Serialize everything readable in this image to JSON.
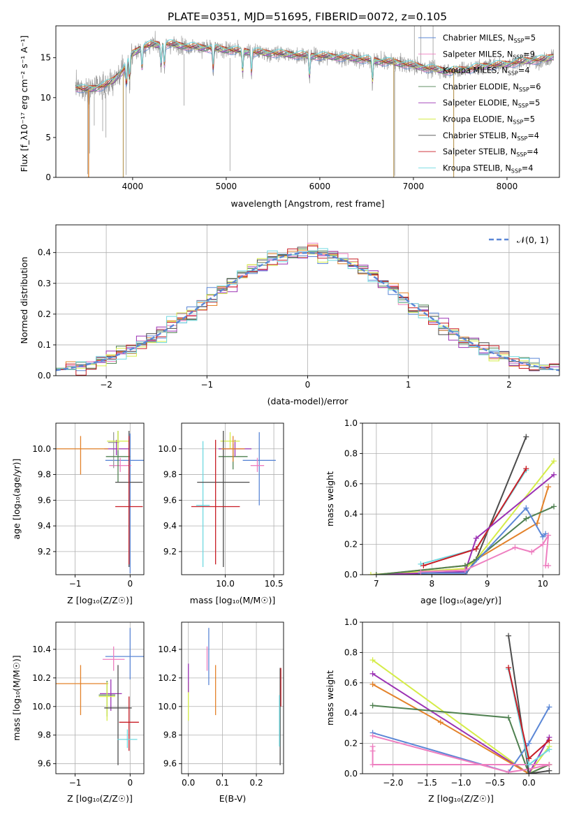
{
  "figure": {
    "title": "PLATE=0351, MJD=51695, FIBERID=0072, z=0.105"
  },
  "palette": {
    "Chabrier MILES": "#5b87d6",
    "Salpeter MILES": "#ee7fc0",
    "Kroupa MILES": "#9a9a9a",
    "Chabrier ELODIE": "#4f8050",
    "Salpeter ELODIE": "#9b32b4",
    "Kroupa ELODIE": "#d5ec48",
    "Chabrier STELIB": "#4c4c4c",
    "Salpeter STELIB": "#c81d25",
    "Kroupa STELIB": "#6fd8e0",
    "orange": "#e3822a",
    "normal": "#5b87d6"
  },
  "chart_data": [
    {
      "id": "spectrum",
      "type": "line",
      "xlabel": "wavelength [Angstrom, rest frame]",
      "ylabel": "Flux [f_λ10⁻¹⁷ erg cm⁻² s⁻¹ A⁻¹]",
      "xlim": [
        3180,
        8560
      ],
      "ylim": [
        0,
        19
      ],
      "xticks": [
        4000,
        5000,
        6000,
        7000,
        8000
      ],
      "yticks": [
        0,
        5,
        10,
        15
      ],
      "grid": false,
      "legend_position": "right",
      "legend": [
        {
          "label": "Chabrier MILES, N",
          "sub": "SSP",
          "tail": "=5",
          "color_key": "Chabrier MILES"
        },
        {
          "label": "Salpeter MILES, N",
          "sub": "SSP",
          "tail": "=9",
          "color_key": "Salpeter MILES"
        },
        {
          "label": "Kroupa MILES, N",
          "sub": "SSP",
          "tail": "=4",
          "color_key": "Kroupa MILES"
        },
        {
          "label": "Chabrier ELODIE, N",
          "sub": "SSP",
          "tail": "=6",
          "color_key": "Chabrier ELODIE"
        },
        {
          "label": "Salpeter ELODIE, N",
          "sub": "SSP",
          "tail": "=5",
          "color_key": "Salpeter ELODIE"
        },
        {
          "label": "Kroupa ELODIE, N",
          "sub": "SSP",
          "tail": "=5",
          "color_key": "Kroupa ELODIE"
        },
        {
          "label": "Chabrier STELIB, N",
          "sub": "SSP",
          "tail": "=4",
          "color_key": "Chabrier STELIB"
        },
        {
          "label": "Salpeter STELIB, N",
          "sub": "SSP",
          "tail": "=4",
          "color_key": "Salpeter STELIB"
        },
        {
          "label": "Kroupa STELIB, N",
          "sub": "SSP",
          "tail": "=4",
          "color_key": "Kroupa STELIB"
        }
      ],
      "continuum": [
        [
          3390,
          11.3
        ],
        [
          3500,
          11.0
        ],
        [
          3600,
          11.2
        ],
        [
          3700,
          11.5
        ],
        [
          3800,
          12.2
        ],
        [
          3900,
          13.5
        ],
        [
          4000,
          15.5
        ],
        [
          4100,
          16.3
        ],
        [
          4200,
          16.6
        ],
        [
          4400,
          16.7
        ],
        [
          4600,
          16.4
        ],
        [
          4800,
          16.2
        ],
        [
          5000,
          16.0
        ],
        [
          5200,
          15.8
        ],
        [
          5400,
          15.6
        ],
        [
          5600,
          15.5
        ],
        [
          5800,
          15.3
        ],
        [
          6000,
          15.2
        ],
        [
          6200,
          15.1
        ],
        [
          6400,
          14.9
        ],
        [
          6600,
          14.6
        ],
        [
          6800,
          14.4
        ],
        [
          7000,
          14.0
        ],
        [
          7200,
          13.6
        ],
        [
          7400,
          13.3
        ],
        [
          7600,
          13.6
        ],
        [
          7800,
          14.0
        ],
        [
          8000,
          14.2
        ],
        [
          8200,
          14.6
        ],
        [
          8400,
          14.8
        ],
        [
          8500,
          15.2
        ]
      ],
      "absorption_lines": [
        3933,
        3968,
        4101,
        4304,
        4340,
        4861,
        5175,
        5270,
        5890,
        6563
      ],
      "spikes_down": [
        [
          3520,
          0.4
        ],
        [
          3540,
          3.0
        ],
        [
          3590,
          6.5
        ],
        [
          3680,
          5.8
        ],
        [
          3715,
          5.0
        ],
        [
          3930,
          0.3
        ],
        [
          4550,
          9.0
        ],
        [
          5040,
          0.8
        ],
        [
          6800,
          0.2
        ],
        [
          7430,
          0.2
        ]
      ],
      "spikes_up": [
        [
          7010,
          19.0
        ],
        [
          7080,
          19.0
        ],
        [
          7210,
          19.0
        ]
      ],
      "model_lines": [
        [
          3900,
          0.0,
          13.0
        ],
        [
          6790,
          0.0,
          15.0
        ],
        [
          7430,
          0.0,
          14.0
        ],
        [
          3530,
          0.0,
          11.0
        ]
      ]
    },
    {
      "id": "residuals",
      "type": "histogram",
      "xlabel": "(data-model)/error",
      "ylabel": "Normed distribution",
      "xlim": [
        -2.5,
        2.5
      ],
      "ylim": [
        0,
        0.49
      ],
      "xticks": [
        -2,
        -1,
        0,
        1,
        2
      ],
      "yticks": [
        0.0,
        0.1,
        0.2,
        0.3,
        0.4
      ],
      "grid": true,
      "legend_position": "upper right",
      "legend_label": "𝒩(0, 1)",
      "bin_width": 0.1,
      "bin_start": -2.5,
      "mu": 0,
      "sigma": 1
    },
    {
      "id": "age_vs_Z",
      "type": "errorbar",
      "xlabel": "Z [log₁₀(Z/Z☉)]",
      "ylabel": "age  [log₁₀(age/yr)]",
      "xlim": [
        -1.35,
        0.25
      ],
      "ylim": [
        9.02,
        10.2
      ],
      "xticks": [
        -1,
        0
      ],
      "yticks": [
        9.2,
        9.4,
        9.6,
        9.8,
        10.0
      ],
      "grid": true,
      "points": [
        {
          "key": "Chabrier MILES",
          "x": 0.0,
          "y": 9.91,
          "xerr": 0.45,
          "yerr": [
            0.88,
            0.21
          ]
        },
        {
          "key": "Salpeter MILES",
          "x": -0.18,
          "y": 9.87,
          "xerr": 0.2,
          "yerr": [
            0.05,
            0.06
          ]
        },
        {
          "key": "Kroupa MILES",
          "x": -0.3,
          "y": 10.05,
          "xerr": 0.1,
          "yerr": [
            0.2,
            0.08
          ]
        },
        {
          "key": "Chabrier ELODIE",
          "x": -0.22,
          "y": 9.94,
          "xerr": 0.22,
          "yerr": [
            0.2,
            0.2
          ]
        },
        {
          "key": "Salpeter ELODIE",
          "x": -0.25,
          "y": 10.0,
          "xerr": 0.22,
          "yerr": [
            0.05,
            0.07
          ]
        },
        {
          "key": "Kroupa ELODIE",
          "x": -0.22,
          "y": 10.06,
          "xerr": 0.2,
          "yerr": [
            0.07,
            0.08
          ]
        },
        {
          "key": "Chabrier STELIB",
          "x": -0.02,
          "y": 9.74,
          "xerr": 0.25,
          "yerr": [
            0.66,
            0.4
          ]
        },
        {
          "key": "Salpeter STELIB",
          "x": -0.02,
          "y": 9.55,
          "xerr": 0.25,
          "yerr": [
            0.45,
            0.55
          ]
        },
        {
          "key": "orange",
          "x": -0.9,
          "y": 10.0,
          "xerr": 0.5,
          "yerr": [
            0.2,
            0.1
          ]
        }
      ]
    },
    {
      "id": "age_vs_mass",
      "type": "errorbar",
      "xlabel": "mass [log₁₀(M/M☉)]",
      "ylabel": "",
      "xlim": [
        9.55,
        10.6
      ],
      "ylim": [
        9.02,
        10.2
      ],
      "xticks": [
        10.0,
        10.5
      ],
      "yticks": [
        9.2,
        9.4,
        9.6,
        9.8,
        10.0
      ],
      "grid": true,
      "points": [
        {
          "key": "Chabrier MILES",
          "x": 10.35,
          "y": 9.91,
          "xerr": 0.17,
          "yerr": [
            0.35,
            0.22
          ]
        },
        {
          "key": "Salpeter MILES",
          "x": 10.33,
          "y": 9.87,
          "xerr": 0.07,
          "yerr": [
            0.05,
            0.06
          ]
        },
        {
          "key": "Kroupa STELIB",
          "x": 9.77,
          "y": 9.56,
          "xerr": 0.07,
          "yerr": [
            0.48,
            0.5
          ]
        },
        {
          "key": "Chabrier ELODIE",
          "x": 10.08,
          "y": 9.94,
          "xerr": 0.15,
          "yerr": [
            0.1,
            0.1
          ]
        },
        {
          "key": "Salpeter ELODIE",
          "x": 10.1,
          "y": 10.0,
          "xerr": 0.17,
          "yerr": [
            0.06,
            0.07
          ]
        },
        {
          "key": "Kroupa ELODIE",
          "x": 10.05,
          "y": 10.06,
          "xerr": 0.1,
          "yerr": [
            0.06,
            0.07
          ]
        },
        {
          "key": "Chabrier STELIB",
          "x": 9.98,
          "y": 9.74,
          "xerr": 0.27,
          "yerr": [
            0.66,
            0.4
          ]
        },
        {
          "key": "Salpeter STELIB",
          "x": 9.9,
          "y": 9.55,
          "xerr": 0.25,
          "yerr": [
            0.45,
            0.52
          ]
        },
        {
          "key": "orange",
          "x": 10.08,
          "y": 10.0,
          "xerr": 0.12,
          "yerr": [
            0.1,
            0.1
          ]
        }
      ]
    },
    {
      "id": "mass_weight_vs_age",
      "type": "line",
      "xlabel": "age  [log₁₀(age/yr)]",
      "ylabel": "mass weight",
      "xlim": [
        6.75,
        10.3
      ],
      "ylim": [
        0,
        1.0
      ],
      "xticks": [
        7,
        8,
        9,
        10
      ],
      "yticks": [
        0.0,
        0.2,
        0.4,
        0.6,
        0.8,
        1.0
      ],
      "grid": true,
      "series": [
        {
          "key": "Chabrier STELIB",
          "x": [
            7.5,
            8.6,
            8.8,
            9.7
          ],
          "y": [
            0.0,
            0.0,
            0.1,
            0.91
          ]
        },
        {
          "key": "Kroupa STELIB",
          "x": [
            7.8,
            8.8,
            9.7
          ],
          "y": [
            0.07,
            0.17,
            0.69
          ]
        },
        {
          "key": "Salpeter STELIB",
          "x": [
            7.85,
            8.8,
            9.7
          ],
          "y": [
            0.06,
            0.17,
            0.7
          ]
        },
        {
          "key": "Kroupa ELODIE",
          "x": [
            6.9,
            8.6,
            8.8,
            10.2
          ],
          "y": [
            0.0,
            0.04,
            0.1,
            0.75
          ]
        },
        {
          "key": "Salpeter ELODIE",
          "x": [
            7.0,
            8.6,
            8.8,
            10.2
          ],
          "y": [
            0.0,
            0.02,
            0.24,
            0.66
          ]
        },
        {
          "key": "orange",
          "x": [
            7.0,
            8.6,
            8.8,
            9.9,
            10.1
          ],
          "y": [
            0.0,
            0.06,
            0.1,
            0.34,
            0.58
          ]
        },
        {
          "key": "Chabrier ELODIE",
          "x": [
            7.0,
            8.6,
            8.8,
            9.7,
            10.2
          ],
          "y": [
            0.0,
            0.06,
            0.1,
            0.37,
            0.45
          ]
        },
        {
          "key": "Chabrier MILES",
          "x": [
            7.8,
            8.6,
            9.7,
            10.0,
            10.05
          ],
          "y": [
            0.01,
            0.01,
            0.44,
            0.25,
            0.27
          ]
        },
        {
          "key": "Salpeter MILES",
          "x": [
            7.8,
            8.6,
            9.5,
            9.8,
            10.0,
            10.1,
            10.05,
            10.1
          ],
          "y": [
            0.02,
            0.03,
            0.18,
            0.15,
            0.2,
            0.26,
            0.06,
            0.06
          ]
        }
      ]
    },
    {
      "id": "mass_vs_Z",
      "type": "errorbar",
      "xlabel": "Z [log₁₀(Z/Z☉)]",
      "ylabel": "mass [log₁₀(M/M☉)]",
      "xlim": [
        -1.35,
        0.25
      ],
      "ylim": [
        9.53,
        10.59
      ],
      "xticks": [
        -1,
        0
      ],
      "yticks": [
        9.6,
        9.8,
        10.0,
        10.2,
        10.4
      ],
      "grid": true,
      "points": [
        {
          "key": "Chabrier MILES",
          "x": 0.0,
          "y": 10.35,
          "xerr": 0.45,
          "yerr": [
            0.16,
            0.2
          ]
        },
        {
          "key": "Salpeter MILES",
          "x": -0.3,
          "y": 10.33,
          "xerr": 0.2,
          "yerr": [
            0.08,
            0.09
          ]
        },
        {
          "key": "orange",
          "x": -0.9,
          "y": 10.16,
          "xerr": 0.5,
          "yerr": [
            0.22,
            0.13
          ]
        },
        {
          "key": "Chabrier ELODIE",
          "x": -0.42,
          "y": 10.08,
          "xerr": 0.15,
          "yerr": [
            0.15,
            0.1
          ]
        },
        {
          "key": "Salpeter ELODIE",
          "x": -0.35,
          "y": 10.09,
          "xerr": 0.2,
          "yerr": [
            0.12,
            0.1
          ]
        },
        {
          "key": "Kroupa ELODIE",
          "x": -0.42,
          "y": 10.07,
          "xerr": 0.15,
          "yerr": [
            0.17,
            0.1
          ]
        },
        {
          "key": "Chabrier STELIB",
          "x": -0.22,
          "y": 9.99,
          "xerr": 0.25,
          "yerr": [
            0.4,
            0.3
          ]
        },
        {
          "key": "Salpeter STELIB",
          "x": -0.02,
          "y": 9.89,
          "xerr": 0.18,
          "yerr": [
            0.2,
            0.18
          ]
        },
        {
          "key": "Kroupa STELIB",
          "x": -0.05,
          "y": 9.77,
          "xerr": 0.18,
          "yerr": [
            0.06,
            0.07
          ]
        }
      ]
    },
    {
      "id": "mass_vs_EBV",
      "type": "errorbar",
      "xlabel": "E(B-V)",
      "ylabel": "",
      "xlim": [
        -0.02,
        0.28
      ],
      "ylim": [
        9.53,
        10.59
      ],
      "xticks": [
        0.0,
        0.1,
        0.2
      ],
      "yticks": [
        9.6,
        9.8,
        10.0,
        10.2,
        10.4
      ],
      "grid": true,
      "points": [
        {
          "key": "Chabrier MILES",
          "x": 0.06,
          "y": 10.35,
          "xerr": 0,
          "yerr": [
            0.2,
            0.2
          ]
        },
        {
          "key": "Salpeter MILES",
          "x": 0.055,
          "y": 10.33,
          "xerr": 0,
          "yerr": [
            0.08,
            0.09
          ]
        },
        {
          "key": "orange",
          "x": 0.08,
          "y": 10.16,
          "xerr": 0,
          "yerr": [
            0.22,
            0.13
          ]
        },
        {
          "key": "Kroupa ELODIE",
          "x": 0.0,
          "y": 10.07,
          "xerr": 0,
          "yerr": [
            0.17,
            0.1
          ]
        },
        {
          "key": "Salpeter ELODIE",
          "x": 0.0,
          "y": 10.2,
          "xerr": 0,
          "yerr": [
            0.1,
            0.1
          ]
        },
        {
          "key": "Chabrier STELIB",
          "x": 0.27,
          "y": 9.99,
          "xerr": 0,
          "yerr": [
            0.4,
            0.28
          ]
        },
        {
          "key": "Salpeter STELIB",
          "x": 0.272,
          "y": 10.1,
          "xerr": 0,
          "yerr": [
            0.1,
            0.17
          ]
        },
        {
          "key": "Kroupa STELIB",
          "x": 0.268,
          "y": 9.9,
          "xerr": 0,
          "yerr": [
            0.18,
            0.18
          ]
        }
      ]
    },
    {
      "id": "mass_weight_vs_Z",
      "type": "line",
      "xlabel": "Z [log₁₀(Z/Z☉)]",
      "ylabel": "mass weight",
      "xlim": [
        -2.45,
        0.45
      ],
      "ylim": [
        0,
        1.0
      ],
      "xticks": [
        -2.0,
        -1.5,
        -1.0,
        -0.5,
        0.0
      ],
      "yticks": [
        0.0,
        0.2,
        0.4,
        0.6,
        0.8,
        1.0
      ],
      "grid": true,
      "series": [
        {
          "key": "Kroupa ELODIE",
          "x": [
            -2.3,
            0.0,
            0.3
          ],
          "y": [
            0.75,
            0.0,
            0.18
          ]
        },
        {
          "key": "Salpeter ELODIE",
          "x": [
            -2.3,
            0.0,
            0.3
          ],
          "y": [
            0.66,
            0.0,
            0.24
          ]
        },
        {
          "key": "orange",
          "x": [
            -2.3,
            -1.3,
            0.0,
            0.3
          ],
          "y": [
            0.59,
            0.34,
            0.0,
            0.06
          ]
        },
        {
          "key": "Chabrier ELODIE",
          "x": [
            -2.3,
            -0.3,
            0.0,
            0.3
          ],
          "y": [
            0.45,
            0.37,
            0.0,
            0.06
          ]
        },
        {
          "key": "Chabrier MILES",
          "x": [
            -2.3,
            -0.3,
            0.0,
            0.3
          ],
          "y": [
            0.27,
            0.01,
            0.2,
            0.44
          ]
        },
        {
          "key": "Salpeter MILES",
          "x": [
            -2.3,
            -0.3,
            0.0,
            0.3,
            -2.3,
            -2.3,
            -2.3
          ],
          "y": [
            0.25,
            0.01,
            0.03,
            0.06,
            0.06,
            0.15,
            0.18
          ]
        },
        {
          "key": "Chabrier STELIB",
          "x": [
            -0.3,
            0.0,
            0.3
          ],
          "y": [
            0.91,
            0.0,
            0.02
          ]
        },
        {
          "key": "Kroupa STELIB",
          "x": [
            -0.3,
            0.0,
            0.3
          ],
          "y": [
            0.69,
            0.06,
            0.16
          ]
        },
        {
          "key": "Salpeter STELIB",
          "x": [
            -0.3,
            0.0,
            0.3
          ],
          "y": [
            0.7,
            0.1,
            0.22
          ]
        }
      ]
    }
  ]
}
